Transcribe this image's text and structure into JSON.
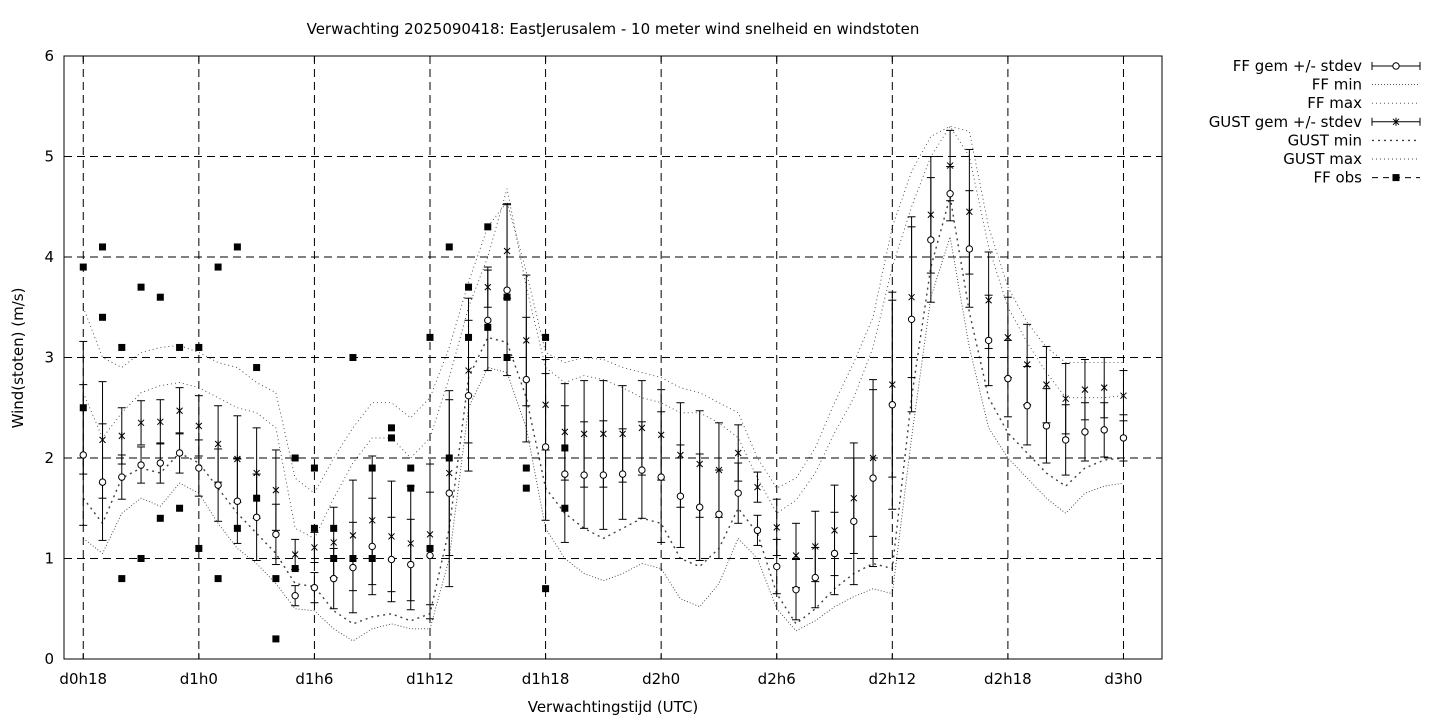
{
  "chart_data": {
    "type": "line",
    "title": "Verwachting 2025090418: EastJerusalem - 10 meter wind snelheid en windstoten",
    "xlabel": "Verwachtingstijd (UTC)",
    "ylabel": "Wind(stoten) (m/s)",
    "xlim": [
      -1,
      56
    ],
    "ylim": [
      0,
      6
    ],
    "grid": true,
    "legend_position": "outside-top-right",
    "x_ticks": [
      {
        "x": 0,
        "label": "d0h18"
      },
      {
        "x": 6,
        "label": "d1h0"
      },
      {
        "x": 12,
        "label": "d1h6"
      },
      {
        "x": 18,
        "label": "d1h12"
      },
      {
        "x": 24,
        "label": "d1h18"
      },
      {
        "x": 30,
        "label": "d2h0"
      },
      {
        "x": 36,
        "label": "d2h6"
      },
      {
        "x": 42,
        "label": "d2h12"
      },
      {
        "x": 48,
        "label": "d2h18"
      },
      {
        "x": 54,
        "label": "d3h0"
      }
    ],
    "y_ticks": [
      {
        "y": 0,
        "label": "0"
      },
      {
        "y": 1,
        "label": "1"
      },
      {
        "y": 2,
        "label": "2"
      },
      {
        "y": 3,
        "label": "3"
      },
      {
        "y": 4,
        "label": "4"
      },
      {
        "y": 5,
        "label": "5"
      },
      {
        "y": 6,
        "label": "6"
      }
    ],
    "ff_mean": {
      "name": "FF gem +/- stdev",
      "x": [
        0,
        1,
        2,
        3,
        4,
        5,
        6,
        7,
        8,
        9,
        10,
        11,
        12,
        13,
        14,
        15,
        16,
        17,
        18,
        19,
        20,
        21,
        22,
        23,
        24,
        25,
        26,
        27,
        28,
        29,
        30,
        31,
        32,
        33,
        34,
        35,
        36,
        37,
        38,
        39,
        40,
        41,
        42,
        43,
        44,
        45,
        46,
        47,
        48,
        49,
        50,
        51,
        52,
        53,
        54
      ],
      "mean": [
        2.03,
        1.76,
        1.81,
        1.93,
        1.95,
        2.05,
        1.9,
        1.73,
        1.57,
        1.41,
        1.24,
        0.63,
        0.71,
        0.8,
        0.91,
        1.12,
        0.99,
        0.94,
        1.03,
        1.65,
        2.62,
        3.37,
        3.67,
        2.78,
        2.11,
        1.84,
        1.83,
        1.83,
        1.84,
        1.88,
        1.81,
        1.62,
        1.51,
        1.44,
        1.65,
        1.28,
        0.92,
        0.69,
        0.81,
        1.05,
        1.37,
        1.8,
        2.53,
        3.38,
        4.17,
        4.63,
        4.08,
        3.17,
        2.79,
        2.52,
        2.32,
        2.18,
        2.26,
        2.28,
        2.2
      ],
      "sd": [
        0.7,
        0.58,
        0.22,
        0.18,
        0.2,
        0.2,
        0.28,
        0.36,
        0.42,
        0.43,
        0.3,
        0.1,
        0.15,
        0.3,
        0.45,
        0.48,
        0.42,
        0.45,
        0.63,
        0.93,
        0.75,
        0.5,
        0.85,
        0.62,
        0.73,
        0.68,
        0.53,
        0.54,
        0.45,
        0.48,
        0.65,
        0.51,
        0.53,
        0.44,
        0.3,
        0.15,
        0.27,
        0.3,
        0.3,
        0.41,
        0.63,
        0.88,
        1.04,
        0.92,
        0.62,
        0.27,
        0.58,
        0.45,
        0.38,
        0.39,
        0.37,
        0.35,
        0.29,
        0.27,
        0.23
      ]
    },
    "ff_min": {
      "name": "FF min",
      "x": [
        0,
        1,
        2,
        3,
        4,
        5,
        6,
        7,
        8,
        9,
        10,
        11,
        12,
        13,
        14,
        15,
        16,
        17,
        18,
        19,
        20,
        21,
        22,
        23,
        24,
        25,
        26,
        27,
        28,
        29,
        30,
        31,
        32,
        33,
        34,
        35,
        36,
        37,
        38,
        39,
        40,
        41,
        42,
        43,
        44,
        45,
        46,
        47,
        48,
        49,
        50,
        51,
        52,
        53,
        54
      ],
      "values": [
        1.2,
        1.05,
        1.45,
        1.6,
        1.52,
        1.75,
        1.65,
        1.35,
        1.1,
        0.95,
        0.75,
        0.5,
        0.48,
        0.3,
        0.18,
        0.3,
        0.35,
        0.3,
        0.3,
        1.0,
        2.5,
        2.9,
        2.85,
        2.3,
        1.3,
        1.0,
        0.85,
        0.78,
        0.85,
        0.95,
        0.9,
        0.6,
        0.52,
        0.75,
        1.2,
        1.0,
        0.5,
        0.28,
        0.38,
        0.52,
        0.62,
        0.7,
        0.65,
        2.2,
        3.6,
        4.2,
        3.1,
        2.3,
        2.0,
        1.8,
        1.6,
        1.45,
        1.65,
        1.72,
        1.75
      ]
    },
    "ff_max": {
      "name": "FF max",
      "x": [
        0,
        1,
        2,
        3,
        4,
        5,
        6,
        7,
        8,
        9,
        10,
        11,
        12,
        13,
        14,
        15,
        16,
        17,
        18,
        19,
        20,
        21,
        22,
        23,
        24,
        25,
        26,
        27,
        28,
        29,
        30,
        31,
        32,
        33,
        34,
        35,
        36,
        37,
        38,
        39,
        40,
        41,
        42,
        43,
        44,
        45,
        46,
        47,
        48,
        49,
        50,
        51,
        52,
        53,
        54
      ],
      "values": [
        2.65,
        2.2,
        2.45,
        2.65,
        2.72,
        2.75,
        2.7,
        2.6,
        2.5,
        2.45,
        2.3,
        1.3,
        1.2,
        1.6,
        1.95,
        2.2,
        2.2,
        2.0,
        2.2,
        2.8,
        3.5,
        4.0,
        4.68,
        3.7,
        2.9,
        2.75,
        2.82,
        2.78,
        2.7,
        2.6,
        2.55,
        2.45,
        2.45,
        2.35,
        2.2,
        1.8,
        1.45,
        1.58,
        1.85,
        2.25,
        2.6,
        3.1,
        3.9,
        4.5,
        5.0,
        5.3,
        5.0,
        4.1,
        3.5,
        3.15,
        2.85,
        2.6,
        2.6,
        2.6,
        2.62
      ]
    },
    "gust_mean": {
      "name": "GUST gem +/- stdev",
      "x": [
        0,
        1,
        2,
        3,
        4,
        5,
        6,
        7,
        8,
        9,
        10,
        11,
        12,
        13,
        14,
        15,
        16,
        17,
        18,
        19,
        20,
        21,
        22,
        23,
        24,
        25,
        26,
        27,
        28,
        29,
        30,
        31,
        32,
        33,
        34,
        35,
        36,
        37,
        38,
        39,
        40,
        41,
        42,
        43,
        44,
        45,
        46,
        47,
        48,
        49,
        50,
        51,
        52,
        53,
        54
      ],
      "mean": [
        2.5,
        2.18,
        2.22,
        2.35,
        2.36,
        2.47,
        2.32,
        2.14,
        1.99,
        1.85,
        1.68,
        1.04,
        1.11,
        1.16,
        1.23,
        1.38,
        1.22,
        1.15,
        1.24,
        1.85,
        2.87,
        3.7,
        4.06,
        3.17,
        2.53,
        2.26,
        2.24,
        2.24,
        2.24,
        2.3,
        2.23,
        2.03,
        1.94,
        1.88,
        2.05,
        1.71,
        1.31,
        1.03,
        1.12,
        1.28,
        1.6,
        2.0,
        2.73,
        3.6,
        4.42,
        4.91,
        4.45,
        3.57,
        3.2,
        2.93,
        2.73,
        2.59,
        2.68,
        2.7,
        2.62
      ],
      "sd": [
        0.66,
        0.58,
        0.28,
        0.22,
        0.22,
        0.23,
        0.3,
        0.38,
        0.43,
        0.45,
        0.4,
        0.15,
        0.15,
        0.35,
        0.55,
        0.64,
        0.55,
        0.57,
        0.7,
        0.82,
        0.72,
        0.2,
        0.47,
        0.65,
        0.45,
        0.48,
        0.53,
        0.53,
        0.48,
        0.47,
        0.45,
        0.52,
        0.53,
        0.47,
        0.28,
        0.15,
        0.28,
        0.32,
        0.35,
        0.45,
        0.55,
        0.78,
        0.92,
        0.8,
        0.58,
        0.35,
        0.62,
        0.48,
        0.4,
        0.4,
        0.38,
        0.35,
        0.3,
        0.3,
        0.25
      ]
    },
    "gust_min": {
      "name": "GUST min",
      "x": [
        0,
        1,
        2,
        3,
        4,
        5,
        6,
        7,
        8,
        9,
        10,
        11,
        12,
        13,
        14,
        15,
        16,
        17,
        18,
        19,
        20,
        21,
        22,
        23,
        24,
        25,
        26,
        27,
        28,
        29,
        30,
        31,
        32,
        33,
        34,
        35,
        36,
        37,
        38,
        39,
        40,
        41,
        42,
        43,
        44,
        45,
        46,
        47,
        48,
        49,
        50,
        51,
        52,
        53,
        54
      ],
      "values": [
        1.6,
        1.35,
        1.8,
        1.9,
        1.85,
        2.05,
        1.95,
        1.7,
        1.45,
        1.25,
        1.05,
        0.75,
        0.72,
        0.48,
        0.35,
        0.42,
        0.45,
        0.38,
        0.45,
        1.3,
        2.8,
        3.2,
        3.15,
        2.6,
        1.7,
        1.45,
        1.3,
        1.2,
        1.3,
        1.4,
        1.35,
        1.0,
        0.92,
        1.1,
        1.5,
        1.25,
        0.65,
        0.35,
        0.5,
        0.7,
        0.85,
        0.95,
        0.9,
        2.6,
        3.9,
        4.6,
        3.45,
        2.6,
        2.25,
        2.05,
        1.85,
        1.72,
        1.9,
        1.98,
        2.0
      ]
    },
    "gust_max": {
      "name": "GUST max",
      "x": [
        0,
        1,
        2,
        3,
        4,
        5,
        6,
        7,
        8,
        9,
        10,
        11,
        12,
        13,
        14,
        15,
        16,
        17,
        18,
        19,
        20,
        21,
        22,
        23,
        24,
        25,
        26,
        27,
        28,
        29,
        30,
        31,
        32,
        33,
        34,
        35,
        36,
        37,
        38,
        39,
        40,
        41,
        42,
        43,
        44,
        45,
        46,
        47,
        48,
        49,
        50,
        51,
        52,
        53,
        54
      ],
      "values": [
        3.5,
        3.0,
        2.9,
        3.05,
        3.1,
        3.12,
        3.05,
        2.95,
        2.9,
        2.75,
        2.65,
        1.8,
        1.65,
        2.0,
        2.3,
        2.55,
        2.55,
        2.4,
        2.6,
        3.1,
        3.75,
        4.3,
        4.55,
        3.85,
        3.05,
        2.95,
        3.0,
        2.98,
        2.9,
        2.85,
        2.8,
        2.7,
        2.65,
        2.55,
        2.45,
        2.0,
        1.7,
        1.8,
        2.1,
        2.55,
        2.95,
        3.4,
        4.3,
        4.85,
        5.2,
        5.3,
        5.25,
        4.3,
        3.7,
        3.35,
        3.1,
        2.95,
        2.95,
        2.95,
        2.95
      ]
    },
    "ff_obs": {
      "name": "FF obs",
      "points": [
        [
          0,
          3.9
        ],
        [
          0,
          2.5
        ],
        [
          1,
          4.1
        ],
        [
          1,
          3.4
        ],
        [
          2,
          3.1
        ],
        [
          2,
          0.8
        ],
        [
          3,
          3.7
        ],
        [
          3,
          1.0
        ],
        [
          4,
          3.6
        ],
        [
          4,
          1.4
        ],
        [
          5,
          3.1
        ],
        [
          5,
          1.5
        ],
        [
          6,
          3.1
        ],
        [
          6,
          1.1
        ],
        [
          7,
          3.9
        ],
        [
          7,
          0.8
        ],
        [
          8,
          4.1
        ],
        [
          8,
          1.3
        ],
        [
          9,
          2.9
        ],
        [
          9,
          1.6
        ],
        [
          10,
          0.8
        ],
        [
          10,
          0.2
        ],
        [
          11,
          2.0
        ],
        [
          11,
          0.9
        ],
        [
          12,
          1.9
        ],
        [
          12,
          1.3
        ],
        [
          13,
          1.3
        ],
        [
          13,
          1.0
        ],
        [
          14,
          3.0
        ],
        [
          14,
          1.0
        ],
        [
          15,
          1.9
        ],
        [
          15,
          1.0
        ],
        [
          16,
          2.3
        ],
        [
          16,
          2.2
        ],
        [
          17,
          1.9
        ],
        [
          17,
          1.7
        ],
        [
          18,
          3.2
        ],
        [
          18,
          1.1
        ],
        [
          19,
          4.1
        ],
        [
          19,
          2.0
        ],
        [
          20,
          3.7
        ],
        [
          20,
          3.2
        ],
        [
          21,
          4.3
        ],
        [
          21,
          3.3
        ],
        [
          22,
          3.6
        ],
        [
          22,
          3.0
        ],
        [
          23,
          1.9
        ],
        [
          23,
          1.7
        ],
        [
          24,
          3.2
        ],
        [
          24,
          0.7
        ],
        [
          25,
          2.1
        ],
        [
          25,
          1.5
        ]
      ]
    }
  }
}
